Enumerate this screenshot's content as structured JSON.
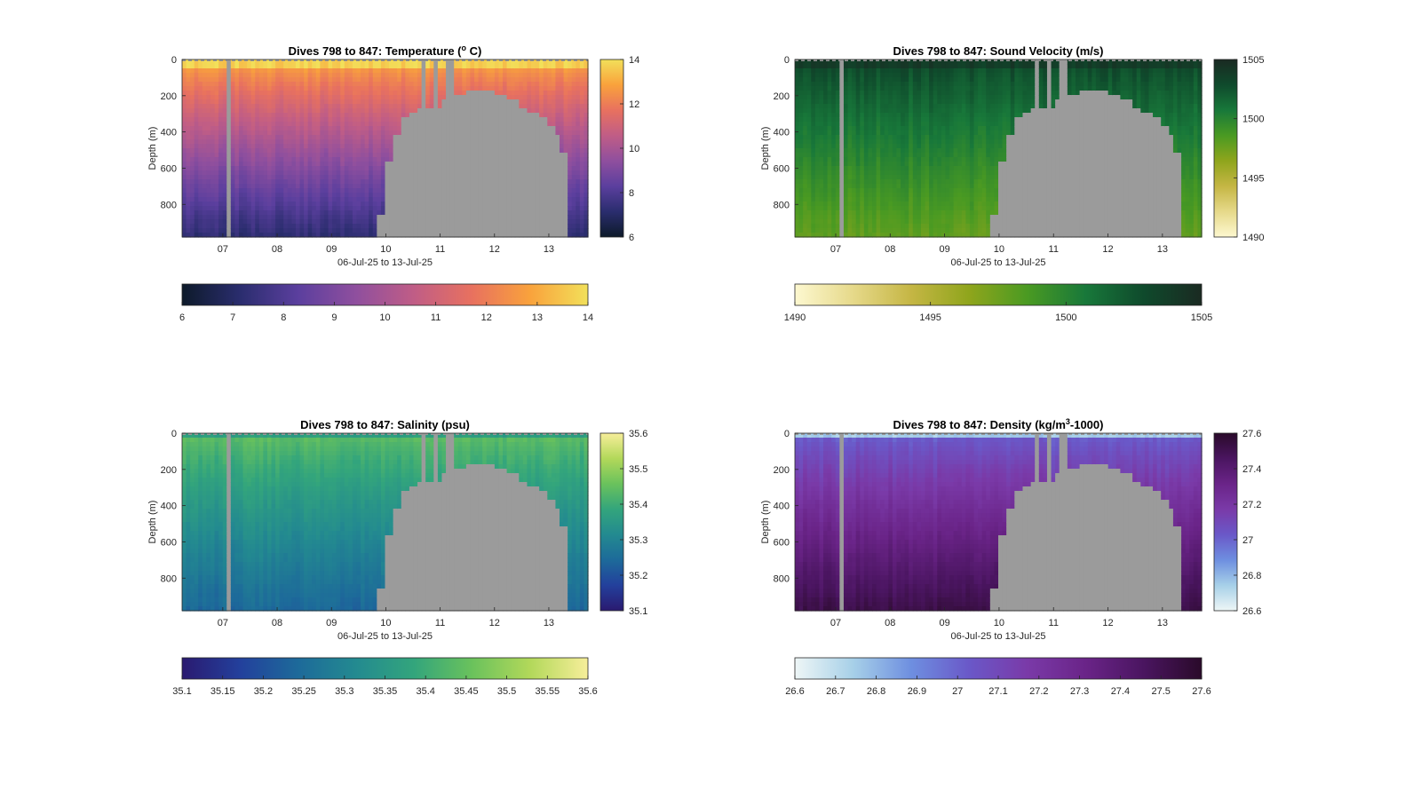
{
  "figure": {
    "background": "#ffffff",
    "mask_color": "#9b9b9b"
  },
  "chart_data": [
    {
      "type": "heatmap",
      "title_prefix": "Dives 798 to 847: Temperature (",
      "title_sup": "o",
      "title_suffix": " C)",
      "xlabel": "06-Jul-25 to 13-Jul-25",
      "ylabel": "Depth (m)",
      "x_ticks": [
        "07",
        "08",
        "09",
        "10",
        "11",
        "12",
        "13"
      ],
      "y_ticks": [
        "0",
        "200",
        "400",
        "600",
        "800"
      ],
      "x_range_days": [
        6.25,
        13.72
      ],
      "y_range_m": [
        0,
        980
      ],
      "colorbar_ticks_vertical": [
        "14",
        "12",
        "10",
        "8",
        "6"
      ],
      "colorbar_ticks_horizontal": [
        "6",
        "7",
        "8",
        "9",
        "10",
        "11",
        "12",
        "13",
        "14"
      ],
      "clim": [
        6,
        14
      ],
      "colormap": [
        "#0d1a2a",
        "#2a2d6e",
        "#5b3f9e",
        "#8f4f9e",
        "#c05d86",
        "#e8715f",
        "#f9a23c",
        "#f2e05a"
      ],
      "surface_value": 13.7,
      "deep_value": 7.2
    },
    {
      "type": "heatmap",
      "title_prefix": "Dives 798 to 847: Sound Velocity (m/s)",
      "title_sup": "",
      "title_suffix": "",
      "xlabel": "06-Jul-25 to 13-Jul-25",
      "ylabel": "Depth (m)",
      "x_ticks": [
        "07",
        "08",
        "09",
        "10",
        "11",
        "12",
        "13"
      ],
      "y_ticks": [
        "0",
        "200",
        "400",
        "600",
        "800"
      ],
      "x_range_days": [
        6.25,
        13.72
      ],
      "y_range_m": [
        0,
        980
      ],
      "colorbar_ticks_vertical": [
        "1505",
        "1500",
        "1495",
        "1490"
      ],
      "colorbar_ticks_horizontal": [
        "1490",
        "1495",
        "1500",
        "1505"
      ],
      "clim": [
        1490,
        1505
      ],
      "colormap": [
        "#fdf8d0",
        "#e6d98a",
        "#c5b644",
        "#8fa51c",
        "#4a9a22",
        "#18783a",
        "#0f4a2c",
        "#1a2a22"
      ],
      "surface_value": 1503.8,
      "deep_value": 1497.8
    },
    {
      "type": "heatmap",
      "title_prefix": "Dives 798 to 847: Salinity (psu)",
      "title_sup": "",
      "title_suffix": "",
      "xlabel": "06-Jul-25 to 13-Jul-25",
      "ylabel": "Depth (m)",
      "x_ticks": [
        "07",
        "08",
        "09",
        "10",
        "11",
        "12",
        "13"
      ],
      "y_ticks": [
        "0",
        "200",
        "400",
        "600",
        "800"
      ],
      "x_range_days": [
        6.25,
        13.72
      ],
      "y_range_m": [
        0,
        980
      ],
      "colorbar_ticks_vertical": [
        "35.6",
        "35.5",
        "35.4",
        "35.3",
        "35.2",
        "35.1"
      ],
      "colorbar_ticks_horizontal": [
        "35.1",
        "35.15",
        "35.2",
        "35.25",
        "35.3",
        "35.35",
        "35.4",
        "35.45",
        "35.5",
        "35.55",
        "35.6"
      ],
      "clim": [
        35.1,
        35.6
      ],
      "colormap": [
        "#2a1a70",
        "#23409c",
        "#1d6a9a",
        "#238a90",
        "#33a57c",
        "#6ac25c",
        "#b2d85a",
        "#f7ee9a"
      ],
      "surface_value": 35.45,
      "deep_value": 35.24
    },
    {
      "type": "heatmap",
      "title_prefix": "Dives 798 to 847: Density (kg/m",
      "title_sup": "3",
      "title_suffix": "-1000)",
      "xlabel": "06-Jul-25 to 13-Jul-25",
      "ylabel": "Depth (m)",
      "x_ticks": [
        "07",
        "08",
        "09",
        "10",
        "11",
        "12",
        "13"
      ],
      "y_ticks": [
        "0",
        "200",
        "400",
        "600",
        "800"
      ],
      "x_range_days": [
        6.25,
        13.72
      ],
      "y_range_m": [
        0,
        980
      ],
      "colorbar_ticks_vertical": [
        "27.6",
        "27.4",
        "27.2",
        "27",
        "26.8",
        "26.6"
      ],
      "colorbar_ticks_horizontal": [
        "26.6",
        "26.7",
        "26.8",
        "26.9",
        "27",
        "27.1",
        "27.2",
        "27.3",
        "27.4",
        "27.5",
        "27.6"
      ],
      "clim": [
        26.6,
        27.6
      ],
      "colormap": [
        "#eef6f6",
        "#a7d0e8",
        "#6e8fe0",
        "#6a58c8",
        "#7a3aa8",
        "#6a2488",
        "#4a1560",
        "#2a0a2a"
      ],
      "surface_value": 26.75,
      "deep_value": 27.52
    }
  ]
}
